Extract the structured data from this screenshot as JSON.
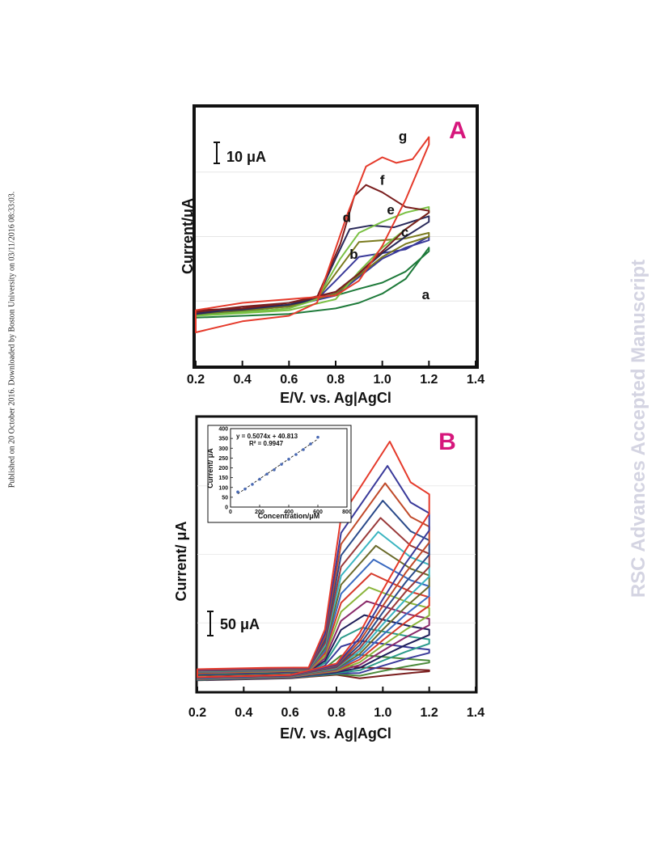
{
  "sidebar_left": "Published on 20 October 2016. Downloaded by Boston University on 03/11/2016 08:33:03.",
  "sidebar_right": "RSC Advances Accepted Manuscript",
  "chart_data": [
    {
      "type": "line",
      "panel_label": "A",
      "xlabel": "E/V. vs. Ag|AgCl",
      "ylabel": "Current/μA",
      "scale_bar": "10 μA",
      "xlim": [
        0.2,
        1.4
      ],
      "xticks": [
        "0.2",
        "0.4",
        "0.6",
        "0.8",
        "1.0",
        "1.2",
        "1.4"
      ],
      "ylim": [
        -15,
        55
      ],
      "series": [
        {
          "name": "a",
          "color": "#1e7a3a",
          "forward": [
            [
              0.2,
              -2
            ],
            [
              0.4,
              -1.5
            ],
            [
              0.6,
              -1
            ],
            [
              0.8,
              0.5
            ],
            [
              0.9,
              2
            ],
            [
              1.0,
              4.5
            ],
            [
              1.1,
              8.5
            ],
            [
              1.2,
              17
            ]
          ],
          "reverse": [
            [
              1.2,
              16
            ],
            [
              1.1,
              10.5
            ],
            [
              1.0,
              7.5
            ],
            [
              0.9,
              5.8
            ],
            [
              0.8,
              4
            ],
            [
              0.6,
              1.2
            ],
            [
              0.4,
              -0.3
            ],
            [
              0.2,
              -1.2
            ]
          ]
        },
        {
          "name": "b",
          "color": "#3a3a9a",
          "forward": [
            [
              0.2,
              -1
            ],
            [
              0.4,
              0
            ],
            [
              0.6,
              1.5
            ],
            [
              0.72,
              3
            ],
            [
              0.8,
              8
            ],
            [
              0.9,
              14.5
            ],
            [
              1.0,
              15.5
            ],
            [
              1.1,
              16.5
            ],
            [
              1.2,
              20
            ]
          ],
          "reverse": [
            [
              1.2,
              19
            ],
            [
              1.1,
              17
            ],
            [
              1.0,
              14
            ],
            [
              0.9,
              9
            ],
            [
              0.8,
              4
            ],
            [
              0.6,
              1
            ],
            [
              0.4,
              0
            ],
            [
              0.2,
              -1
            ]
          ]
        },
        {
          "name": "c",
          "color": "#7a7a1e",
          "forward": [
            [
              0.2,
              -1
            ],
            [
              0.4,
              0
            ],
            [
              0.6,
              1
            ],
            [
              0.72,
              3
            ],
            [
              0.8,
              10
            ],
            [
              0.9,
              18.5
            ],
            [
              1.0,
              19
            ],
            [
              1.1,
              19.5
            ],
            [
              1.2,
              21
            ]
          ],
          "reverse": [
            [
              1.2,
              20
            ],
            [
              1.1,
              18
            ],
            [
              1.0,
              14.5
            ],
            [
              0.9,
              9.5
            ],
            [
              0.8,
              4.5
            ],
            [
              0.6,
              1
            ],
            [
              0.4,
              0
            ],
            [
              0.2,
              -0.8
            ]
          ]
        },
        {
          "name": "d",
          "color": "#2a2a5a",
          "forward": [
            [
              0.2,
              -1
            ],
            [
              0.4,
              0.5
            ],
            [
              0.6,
              1.5
            ],
            [
              0.72,
              3
            ],
            [
              0.8,
              14
            ],
            [
              0.86,
              22
            ],
            [
              0.95,
              23
            ],
            [
              1.05,
              22.5
            ],
            [
              1.2,
              25.5
            ]
          ],
          "reverse": [
            [
              1.2,
              24
            ],
            [
              1.1,
              20
            ],
            [
              1.0,
              15.5
            ],
            [
              0.9,
              10
            ],
            [
              0.8,
              5
            ],
            [
              0.6,
              1.5
            ],
            [
              0.4,
              0.2
            ],
            [
              0.2,
              -0.5
            ]
          ]
        },
        {
          "name": "e",
          "color": "#7ac043",
          "forward": [
            [
              0.2,
              -1.5
            ],
            [
              0.4,
              -0.5
            ],
            [
              0.6,
              0.5
            ],
            [
              0.72,
              3
            ],
            [
              0.82,
              14
            ],
            [
              0.9,
              21
            ],
            [
              1.0,
              24
            ],
            [
              1.1,
              26.5
            ],
            [
              1.2,
              28
            ]
          ],
          "reverse": [
            [
              1.2,
              26.5
            ],
            [
              1.1,
              22
            ],
            [
              1.0,
              17
            ],
            [
              0.9,
              10.5
            ],
            [
              0.8,
              3
            ],
            [
              0.6,
              0
            ],
            [
              0.4,
              -0.8
            ],
            [
              0.2,
              -1.5
            ]
          ]
        },
        {
          "name": "f",
          "color": "#7a1e1e",
          "forward": [
            [
              0.2,
              -0.5
            ],
            [
              0.4,
              1
            ],
            [
              0.6,
              2
            ],
            [
              0.72,
              3.5
            ],
            [
              0.82,
              18
            ],
            [
              0.88,
              31
            ],
            [
              0.93,
              34
            ],
            [
              1.0,
              32
            ],
            [
              1.1,
              28
            ],
            [
              1.2,
              27
            ]
          ],
          "reverse": [
            [
              1.2,
              26.5
            ],
            [
              1.1,
              22
            ],
            [
              1.0,
              16
            ],
            [
              0.9,
              10
            ],
            [
              0.8,
              5
            ],
            [
              0.6,
              2
            ],
            [
              0.4,
              0.5
            ],
            [
              0.2,
              0
            ]
          ]
        },
        {
          "name": "g",
          "color": "#e53a2b",
          "forward": [
            [
              0.2,
              -6
            ],
            [
              0.4,
              -3
            ],
            [
              0.6,
              -1.5
            ],
            [
              0.72,
              2
            ],
            [
              0.85,
              26
            ],
            [
              0.93,
              39
            ],
            [
              1.0,
              41.5
            ],
            [
              1.06,
              40
            ],
            [
              1.13,
              41
            ],
            [
              1.2,
              47
            ]
          ],
          "reverse": [
            [
              1.2,
              45
            ],
            [
              1.1,
              30
            ],
            [
              1.0,
              17.5
            ],
            [
              0.9,
              8
            ],
            [
              0.8,
              4
            ],
            [
              0.6,
              3
            ],
            [
              0.4,
              2
            ],
            [
              0.2,
              0
            ]
          ]
        }
      ]
    },
    {
      "type": "line",
      "panel_label": "B",
      "xlabel": "E/V. vs. Ag|AgCl",
      "ylabel": "Current/ μA",
      "scale_bar": "50 μA",
      "xlim": [
        0.2,
        1.4
      ],
      "xticks": [
        "0.2",
        "0.4",
        "0.6",
        "0.8",
        "1.0",
        "1.2",
        "1.4"
      ],
      "ylim": [
        -15,
        380
      ],
      "peaks": [
        20,
        38,
        58,
        77,
        95,
        115,
        135,
        155,
        175,
        195,
        215,
        235,
        260,
        285,
        310,
        345
      ],
      "colors": [
        "#7a1e1e",
        "#4a8a3a",
        "#3a3a9a",
        "#2a9a8a",
        "#1e1e5a",
        "#8a2a6a",
        "#8ab43a",
        "#d63a2b",
        "#3a6ac0",
        "#6a6a2a",
        "#3ab4c0",
        "#9a3a3a",
        "#2a4a8a",
        "#c04a2a",
        "#3a3a9a",
        "#e53a2b"
      ],
      "inset": {
        "type": "scatter",
        "equation": "y = 0.5074x + 40.813",
        "r_squared": "R² = 0.9947",
        "xlabel": "Concentration/μM",
        "ylabel": "Current/ μA",
        "xlim": [
          0,
          800
        ],
        "ylim": [
          0,
          400
        ],
        "xticks": [
          "0",
          "200",
          "400",
          "600",
          "800"
        ],
        "yticks": [
          "0",
          "50",
          "100",
          "150",
          "200",
          "250",
          "300",
          "350",
          "400"
        ],
        "x": [
          50,
          100,
          150,
          200,
          250,
          300,
          350,
          400,
          450,
          500,
          550,
          600
        ],
        "y": [
          77,
          92,
          116,
          142,
          168,
          190,
          218,
          244,
          268,
          293,
          322,
          356
        ],
        "point_color": "#4a6ab4",
        "line_color": "#1e1e1e"
      }
    }
  ]
}
